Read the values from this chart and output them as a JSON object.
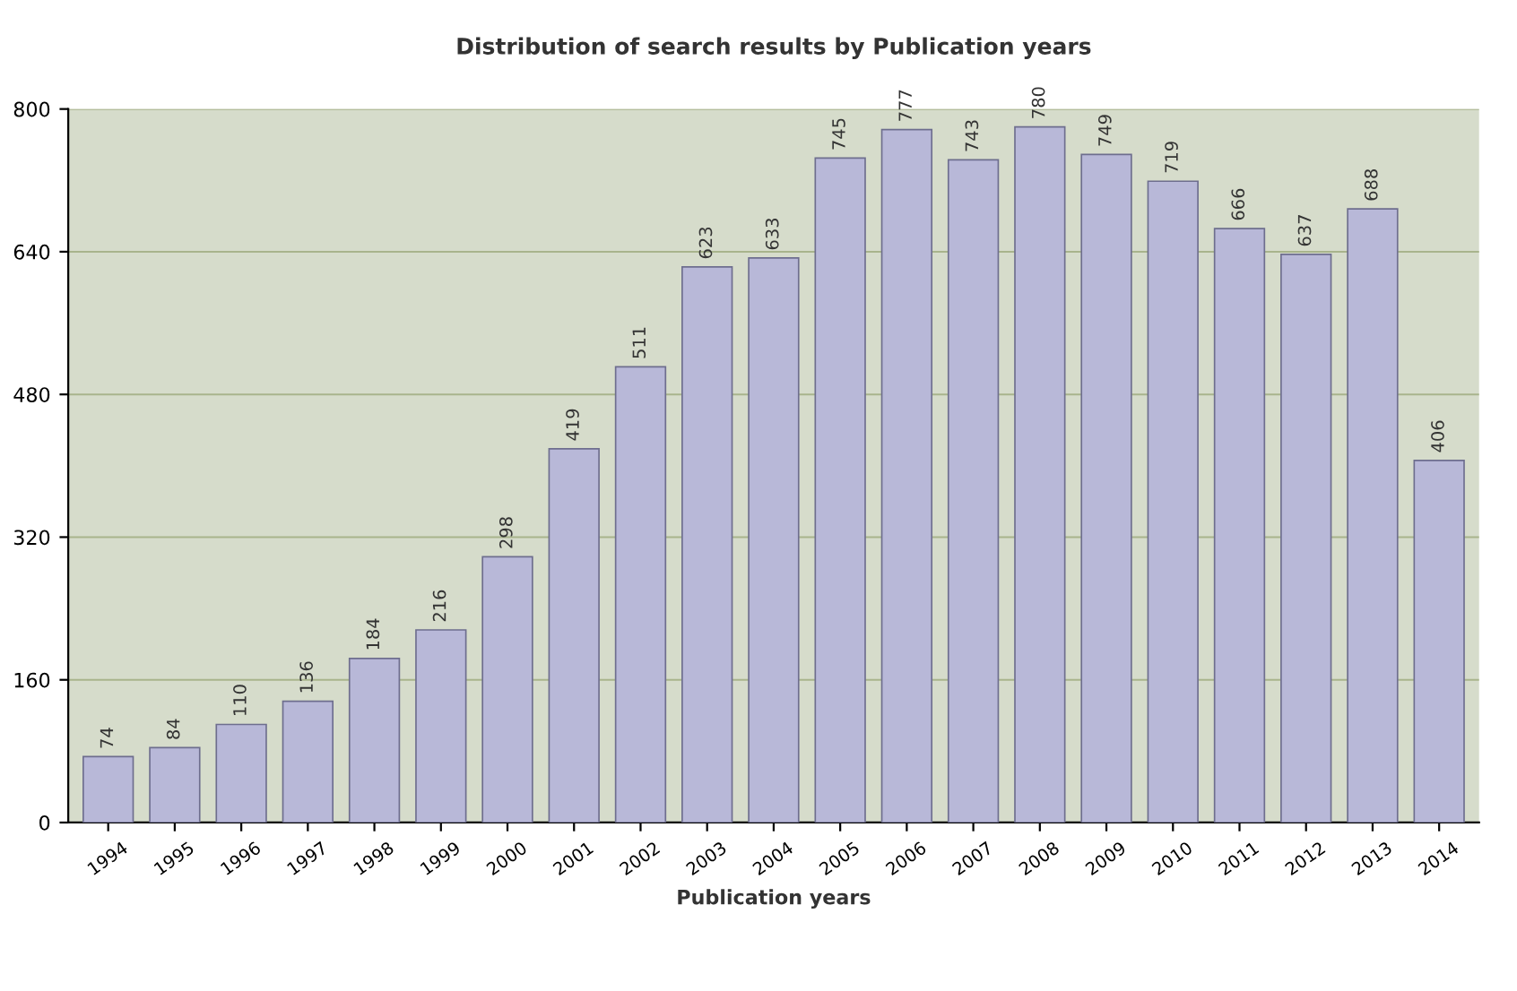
{
  "chart_data": {
    "type": "bar",
    "title": "Distribution of search results by Publication years",
    "xlabel": "Publication years",
    "categories": [
      "1994",
      "1995",
      "1996",
      "1997",
      "1998",
      "1999",
      "2000",
      "2001",
      "2002",
      "2003",
      "2004",
      "2005",
      "2006",
      "2007",
      "2008",
      "2009",
      "2010",
      "2011",
      "2012",
      "2013",
      "2014"
    ],
    "values": [
      74,
      84,
      110,
      136,
      184,
      216,
      298,
      419,
      511,
      623,
      633,
      745,
      777,
      743,
      780,
      749,
      719,
      666,
      637,
      688,
      406
    ],
    "color": "#b8b8d8",
    "ylim": [
      0,
      800
    ],
    "yticks": [
      0,
      160,
      320,
      480,
      640,
      800
    ],
    "grid": "y",
    "data_labels": true
  }
}
